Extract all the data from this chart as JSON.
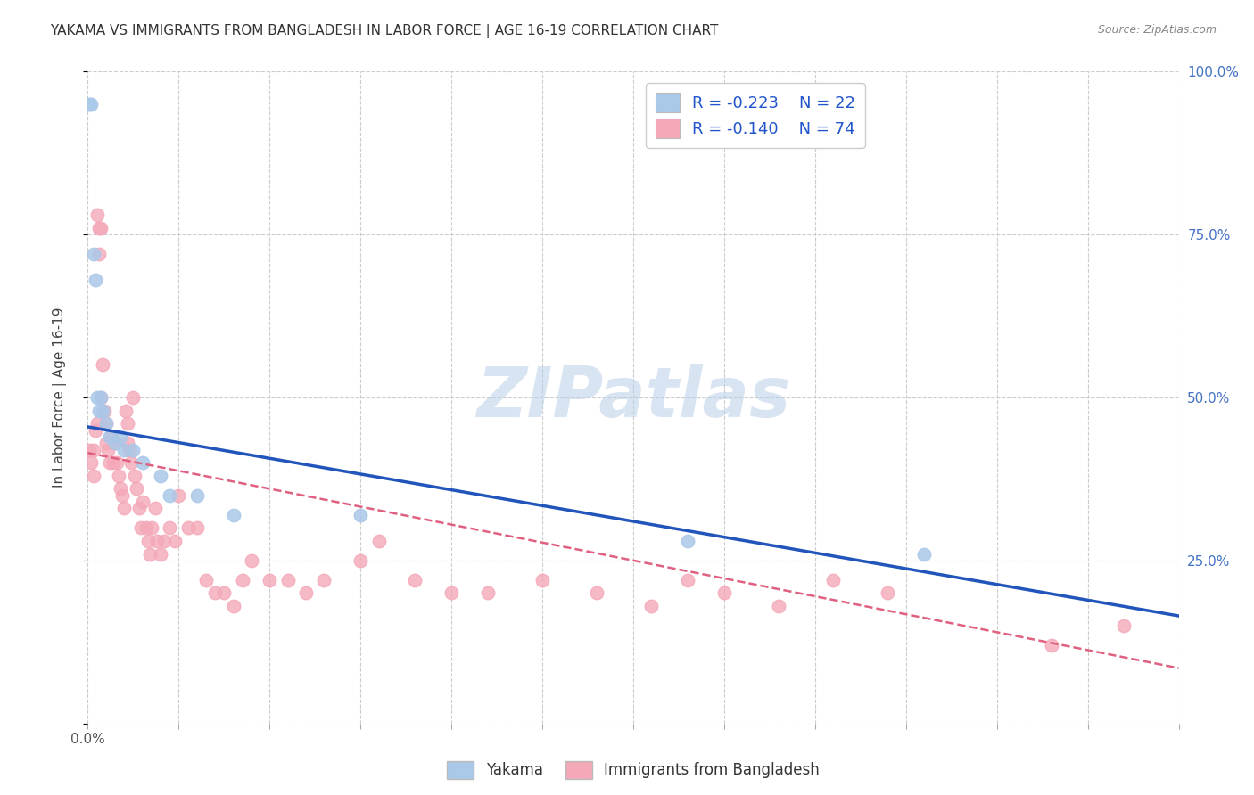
{
  "title": "YAKAMA VS IMMIGRANTS FROM BANGLADESH IN LABOR FORCE | AGE 16-19 CORRELATION CHART",
  "source": "Source: ZipAtlas.com",
  "ylabel": "In Labor Force | Age 16-19",
  "xlim": [
    0.0,
    0.6
  ],
  "ylim": [
    0.0,
    1.0
  ],
  "xtick_values": [
    0.0,
    0.05,
    0.1,
    0.15,
    0.2,
    0.25,
    0.3,
    0.35,
    0.4,
    0.45,
    0.5,
    0.55,
    0.6
  ],
  "xtick_labels_visible": {
    "0.0": "0.0%"
  },
  "ytick_values": [
    0.0,
    0.25,
    0.5,
    0.75,
    1.0
  ],
  "ytick_right_labels": [
    "100.0%",
    "75.0%",
    "50.0%",
    "25.0%"
  ],
  "ytick_right_values": [
    1.0,
    0.75,
    0.5,
    0.25
  ],
  "yakama_color": "#aac8e8",
  "bangladesh_color": "#f4a8b8",
  "yakama_line_color": "#2255bb",
  "bangladesh_line_color": "#e06080",
  "legend_r_yakama": "R = -0.223",
  "legend_n_yakama": "N = 22",
  "legend_r_bangladesh": "R = -0.140",
  "legend_n_bangladesh": "N = 74",
  "watermark": "ZIPatlas",
  "background_color": "#ffffff",
  "grid_color": "#cccccc",
  "yakama_line_start_y": 0.455,
  "yakama_line_end_y": 0.165,
  "bangladesh_line_start_y": 0.415,
  "bangladesh_line_end_y": 0.085,
  "yakama_x": [
    0.001,
    0.002,
    0.003,
    0.004,
    0.005,
    0.006,
    0.007,
    0.008,
    0.01,
    0.012,
    0.015,
    0.018,
    0.02,
    0.025,
    0.03,
    0.04,
    0.045,
    0.06,
    0.08,
    0.15,
    0.33,
    0.46
  ],
  "yakama_y": [
    0.95,
    0.95,
    0.72,
    0.68,
    0.5,
    0.48,
    0.5,
    0.48,
    0.46,
    0.44,
    0.43,
    0.44,
    0.42,
    0.42,
    0.4,
    0.38,
    0.35,
    0.35,
    0.32,
    0.32,
    0.28,
    0.26
  ],
  "bangladesh_x": [
    0.001,
    0.002,
    0.003,
    0.003,
    0.004,
    0.005,
    0.005,
    0.006,
    0.006,
    0.007,
    0.007,
    0.008,
    0.009,
    0.01,
    0.01,
    0.011,
    0.012,
    0.013,
    0.014,
    0.015,
    0.016,
    0.017,
    0.018,
    0.019,
    0.02,
    0.021,
    0.022,
    0.022,
    0.023,
    0.024,
    0.025,
    0.026,
    0.027,
    0.028,
    0.029,
    0.03,
    0.032,
    0.033,
    0.034,
    0.035,
    0.037,
    0.038,
    0.04,
    0.042,
    0.045,
    0.048,
    0.05,
    0.055,
    0.06,
    0.065,
    0.07,
    0.075,
    0.08,
    0.085,
    0.09,
    0.1,
    0.11,
    0.12,
    0.13,
    0.15,
    0.16,
    0.18,
    0.2,
    0.22,
    0.25,
    0.28,
    0.31,
    0.33,
    0.35,
    0.38,
    0.41,
    0.44,
    0.53,
    0.57
  ],
  "bangladesh_y": [
    0.42,
    0.4,
    0.42,
    0.38,
    0.45,
    0.78,
    0.46,
    0.76,
    0.72,
    0.76,
    0.5,
    0.55,
    0.48,
    0.46,
    0.43,
    0.42,
    0.4,
    0.44,
    0.4,
    0.43,
    0.4,
    0.38,
    0.36,
    0.35,
    0.33,
    0.48,
    0.46,
    0.43,
    0.42,
    0.4,
    0.5,
    0.38,
    0.36,
    0.33,
    0.3,
    0.34,
    0.3,
    0.28,
    0.26,
    0.3,
    0.33,
    0.28,
    0.26,
    0.28,
    0.3,
    0.28,
    0.35,
    0.3,
    0.3,
    0.22,
    0.2,
    0.2,
    0.18,
    0.22,
    0.25,
    0.22,
    0.22,
    0.2,
    0.22,
    0.25,
    0.28,
    0.22,
    0.2,
    0.2,
    0.22,
    0.2,
    0.18,
    0.22,
    0.2,
    0.18,
    0.22,
    0.2,
    0.12,
    0.15
  ]
}
